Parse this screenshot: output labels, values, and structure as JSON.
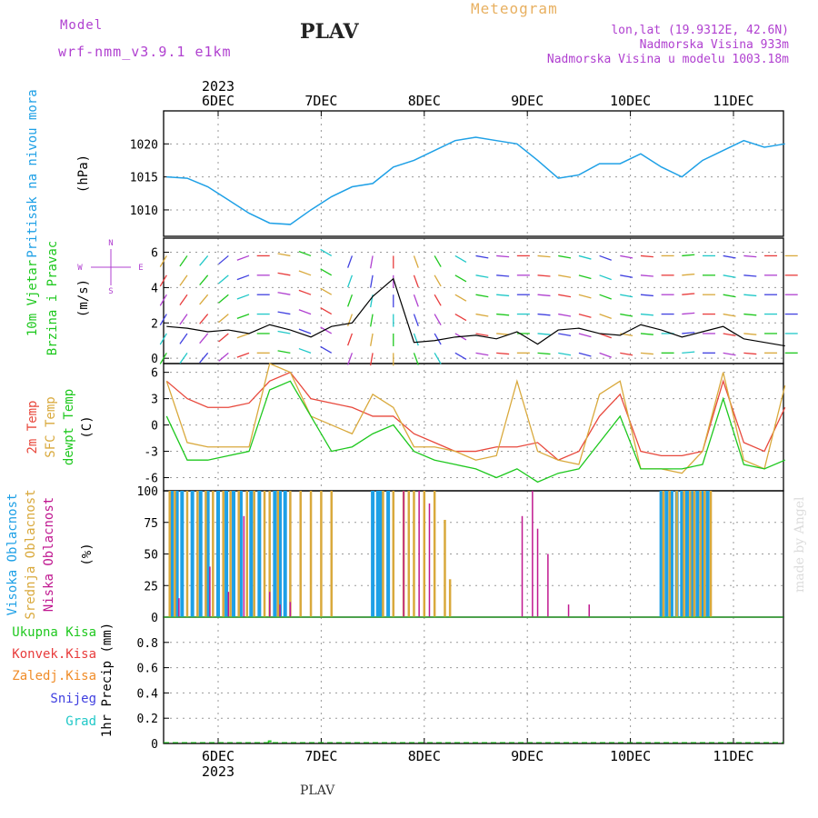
{
  "header": {
    "model_label": "Model",
    "model_name": "wrf-nmm_v3.9.1 e1km",
    "station": "PLAV",
    "title": "Meteogram",
    "lonlat": "lon,lat (19.9312E, 42.6N)",
    "elevation": "Nadmorska Visina 933m",
    "elevation_model": "Nadmorska Visina u modelu 1003.18m"
  },
  "footer": {
    "station": "PLAV",
    "made_by": "made by Angel"
  },
  "colors": {
    "pressure": "#1ea0e6",
    "temp2m": "#e8483c",
    "sfc_temp": "#d9a93c",
    "dewpoint": "#1ec81e",
    "high_cloud": "#1ea0e6",
    "mid_cloud": "#d9a93c",
    "low_cloud": "#c01890",
    "purple": "#b040d0",
    "total_precip": "#1ec81e",
    "conv_precip": "#e83c3c",
    "frz_precip": "#f08c28",
    "snow": "#4040e0",
    "graupel": "#20c8c8"
  },
  "x_axis": {
    "year": "2023",
    "days": [
      "6DEC",
      "7DEC",
      "8DEC",
      "9DEC",
      "10DEC",
      "11DEC"
    ]
  },
  "panel_labels": {
    "pressure": "Pritisak na nivou mora",
    "pressure_unit": "(hPa)",
    "wind1": "10m Vjetar",
    "wind2": "Brzina i Pravac",
    "wind_unit": "(m/s)",
    "compass_n": "N",
    "compass_w": "W",
    "compass_e": "E",
    "compass_s": "S",
    "temp_2m": "2m Temp",
    "temp_sfc": "SFC Temp",
    "temp_dew": "dewpt Temp",
    "temp_unit": "(C)",
    "cloud_high": "Visoka Oblacnost",
    "cloud_mid": "Srednja Oblacnost",
    "cloud_low": "Niska Oblacnost",
    "cloud_unit": "(%)",
    "precip_unit": "1hr Precip (mm)",
    "precip_total": "Ukupna Kisa",
    "precip_conv": "Konvek.Kisa",
    "precip_frz": "Zaledj.Kisa",
    "precip_snow": "Snijeg",
    "precip_grad": "Grad"
  },
  "chart_data": [
    {
      "type": "line",
      "name": "pressure",
      "ylim": [
        1006,
        1025
      ],
      "yticks": [
        1010,
        1015,
        1020
      ],
      "x": [
        0,
        0.2,
        0.4,
        0.6,
        0.8,
        1,
        1.2,
        1.4,
        1.6,
        1.8,
        2,
        2.2,
        2.4,
        2.6,
        2.8,
        3,
        3.2,
        3.4,
        3.6,
        3.8,
        4,
        4.2,
        4.4,
        4.6,
        4.8,
        5,
        5.2,
        5.4,
        5.6,
        5.8,
        6
      ],
      "values": [
        1015,
        1014.8,
        1013.5,
        1011.5,
        1009.5,
        1008,
        1007.8,
        1010,
        1012,
        1013.5,
        1014,
        1016.5,
        1017.5,
        1019,
        1020.5,
        1021,
        1020.5,
        1020,
        1017.5,
        1014.8,
        1015.3,
        1017,
        1017,
        1018.5,
        1016.5,
        1015,
        1017.5,
        1019,
        1020.5,
        1019.5,
        1020
      ]
    },
    {
      "type": "line",
      "name": "wind_speed",
      "ylim": [
        -0.3,
        6.8
      ],
      "yticks": [
        0,
        2,
        4,
        6
      ],
      "x": [
        0,
        0.2,
        0.4,
        0.6,
        0.8,
        1,
        1.2,
        1.4,
        1.6,
        1.8,
        2,
        2.2,
        2.4,
        2.6,
        2.8,
        3,
        3.2,
        3.4,
        3.6,
        3.8,
        4,
        4.2,
        4.4,
        4.6,
        4.8,
        5,
        5.2,
        5.4,
        5.6,
        5.8,
        6
      ],
      "values": [
        1.8,
        1.7,
        1.5,
        1.6,
        1.4,
        1.9,
        1.6,
        1.2,
        1.8,
        2.0,
        3.5,
        4.5,
        0.9,
        1.0,
        1.2,
        1.3,
        1.1,
        1.5,
        0.8,
        1.6,
        1.7,
        1.4,
        1.3,
        1.9,
        1.6,
        1.2,
        1.5,
        1.8,
        1.1,
        0.9,
        0.7
      ],
      "wind_dirs": [
        210,
        215,
        220,
        230,
        250,
        270,
        280,
        290,
        300,
        200,
        190,
        180,
        160,
        150,
        120,
        100,
        95,
        90,
        95,
        100,
        105,
        110,
        100,
        95,
        90,
        85,
        90,
        100,
        95,
        90,
        90
      ]
    },
    {
      "type": "line",
      "name": "temperature",
      "ylim": [
        -7.5,
        7
      ],
      "yticks": [
        -6,
        -3,
        0,
        3,
        6
      ],
      "x": [
        0,
        0.2,
        0.4,
        0.6,
        0.8,
        1,
        1.2,
        1.4,
        1.6,
        1.8,
        2,
        2.2,
        2.4,
        2.6,
        2.8,
        3,
        3.2,
        3.4,
        3.6,
        3.8,
        4,
        4.2,
        4.4,
        4.6,
        4.8,
        5,
        5.2,
        5.4,
        5.6,
        5.8,
        6
      ],
      "series": [
        {
          "name": "2m Temp",
          "values": [
            5,
            3,
            2,
            2,
            2.5,
            5,
            6,
            3,
            2.5,
            2,
            1,
            1,
            -1,
            -2,
            -3,
            -3,
            -2.5,
            -2.5,
            -2,
            -4,
            -3,
            1,
            3.5,
            -3,
            -3.5,
            -3.5,
            -3,
            5,
            -2,
            -3,
            2
          ]
        },
        {
          "name": "SFC Temp",
          "values": [
            5,
            -2,
            -2.5,
            -2.5,
            -2.5,
            7,
            6,
            1,
            0,
            -1,
            3.5,
            2,
            -2.5,
            -2.5,
            -3,
            -4,
            -3.5,
            5,
            -3,
            -4,
            -4.5,
            3.5,
            5,
            -5,
            -5,
            -5.5,
            -3,
            6,
            -4,
            -5,
            4.5
          ]
        },
        {
          "name": "dewpt Temp",
          "values": [
            1,
            -4,
            -4,
            -3.5,
            -3,
            4,
            5,
            1,
            -3,
            -2.5,
            -1,
            0,
            -3,
            -4,
            -4.5,
            -5,
            -6,
            -5,
            -6.5,
            -5.5,
            -5,
            -2,
            1,
            -5,
            -5,
            -5,
            -4.5,
            3,
            -4.5,
            -5,
            -4
          ]
        }
      ]
    },
    {
      "type": "bar",
      "name": "cloud_cover",
      "ylim": [
        0,
        100
      ],
      "yticks": [
        0,
        25,
        50,
        75,
        100
      ],
      "series": [
        {
          "name": "Visoka Oblacnost",
          "x": [
            0.05,
            0.1,
            0.15,
            0.25,
            0.33,
            0.4,
            0.5,
            0.58,
            0.65,
            0.72,
            0.82,
            0.9,
            1.05,
            1.1,
            1.15,
            2.0,
            2.05,
            2.08,
            2.15,
            4.8,
            4.85,
            4.9,
            4.95,
            5.0,
            5.05,
            5.1,
            5.15,
            5.2,
            5.25
          ],
          "values": [
            100,
            100,
            100,
            100,
            100,
            100,
            100,
            100,
            100,
            100,
            100,
            100,
            100,
            100,
            100,
            100,
            100,
            100,
            100,
            100,
            100,
            100,
            100,
            100,
            100,
            100,
            100,
            100,
            100
          ]
        },
        {
          "name": "Srednja Oblacnost",
          "x": [
            0.03,
            0.08,
            0.2,
            0.3,
            0.38,
            0.45,
            0.55,
            0.62,
            0.7,
            0.78,
            0.85,
            0.95,
            1.0,
            1.08,
            1.2,
            1.3,
            1.4,
            1.5,
            1.6,
            2.1,
            2.2,
            2.3,
            2.35,
            2.4,
            2.5,
            2.6,
            2.7,
            2.75,
            4.82,
            4.88,
            4.95,
            5.02,
            5.08,
            5.12,
            5.18,
            5.22,
            5.28
          ],
          "values": [
            100,
            100,
            100,
            100,
            100,
            100,
            100,
            100,
            100,
            100,
            100,
            100,
            100,
            100,
            100,
            100,
            100,
            100,
            100,
            100,
            100,
            100,
            100,
            100,
            100,
            100,
            77,
            30,
            100,
            100,
            100,
            100,
            100,
            100,
            100,
            100,
            100
          ]
        },
        {
          "name": "Niska Oblacnost",
          "x": [
            0.12,
            0.42,
            0.6,
            0.75,
            1.0,
            1.1,
            1.2,
            2.3,
            2.45,
            2.55,
            3.45,
            3.55,
            3.6,
            3.7,
            3.8,
            3.9,
            4.0,
            4.1,
            4.3,
            4.5,
            4.7,
            5.3,
            5.5,
            5.7,
            5.9,
            6.0
          ],
          "values": [
            15,
            40,
            20,
            80,
            20,
            10,
            12,
            100,
            100,
            90,
            80,
            100,
            70,
            50,
            8,
            10,
            8,
            10,
            8,
            8,
            8,
            8,
            8,
            8,
            5,
            5
          ]
        }
      ]
    },
    {
      "type": "bar",
      "name": "precipitation",
      "ylim": [
        0,
        1.0
      ],
      "yticks": [
        0,
        0.2,
        0.4,
        0.6,
        0.8
      ],
      "series": [
        {
          "name": "Ukupna Kisa",
          "x": [
            1.0
          ],
          "values": [
            0.01
          ]
        },
        {
          "name": "Konvek.Kisa",
          "x": [],
          "values": []
        },
        {
          "name": "Zaledj.Kisa",
          "x": [],
          "values": []
        },
        {
          "name": "Snijeg",
          "x": [],
          "values": []
        },
        {
          "name": "Grad",
          "x": [],
          "values": []
        }
      ]
    }
  ]
}
